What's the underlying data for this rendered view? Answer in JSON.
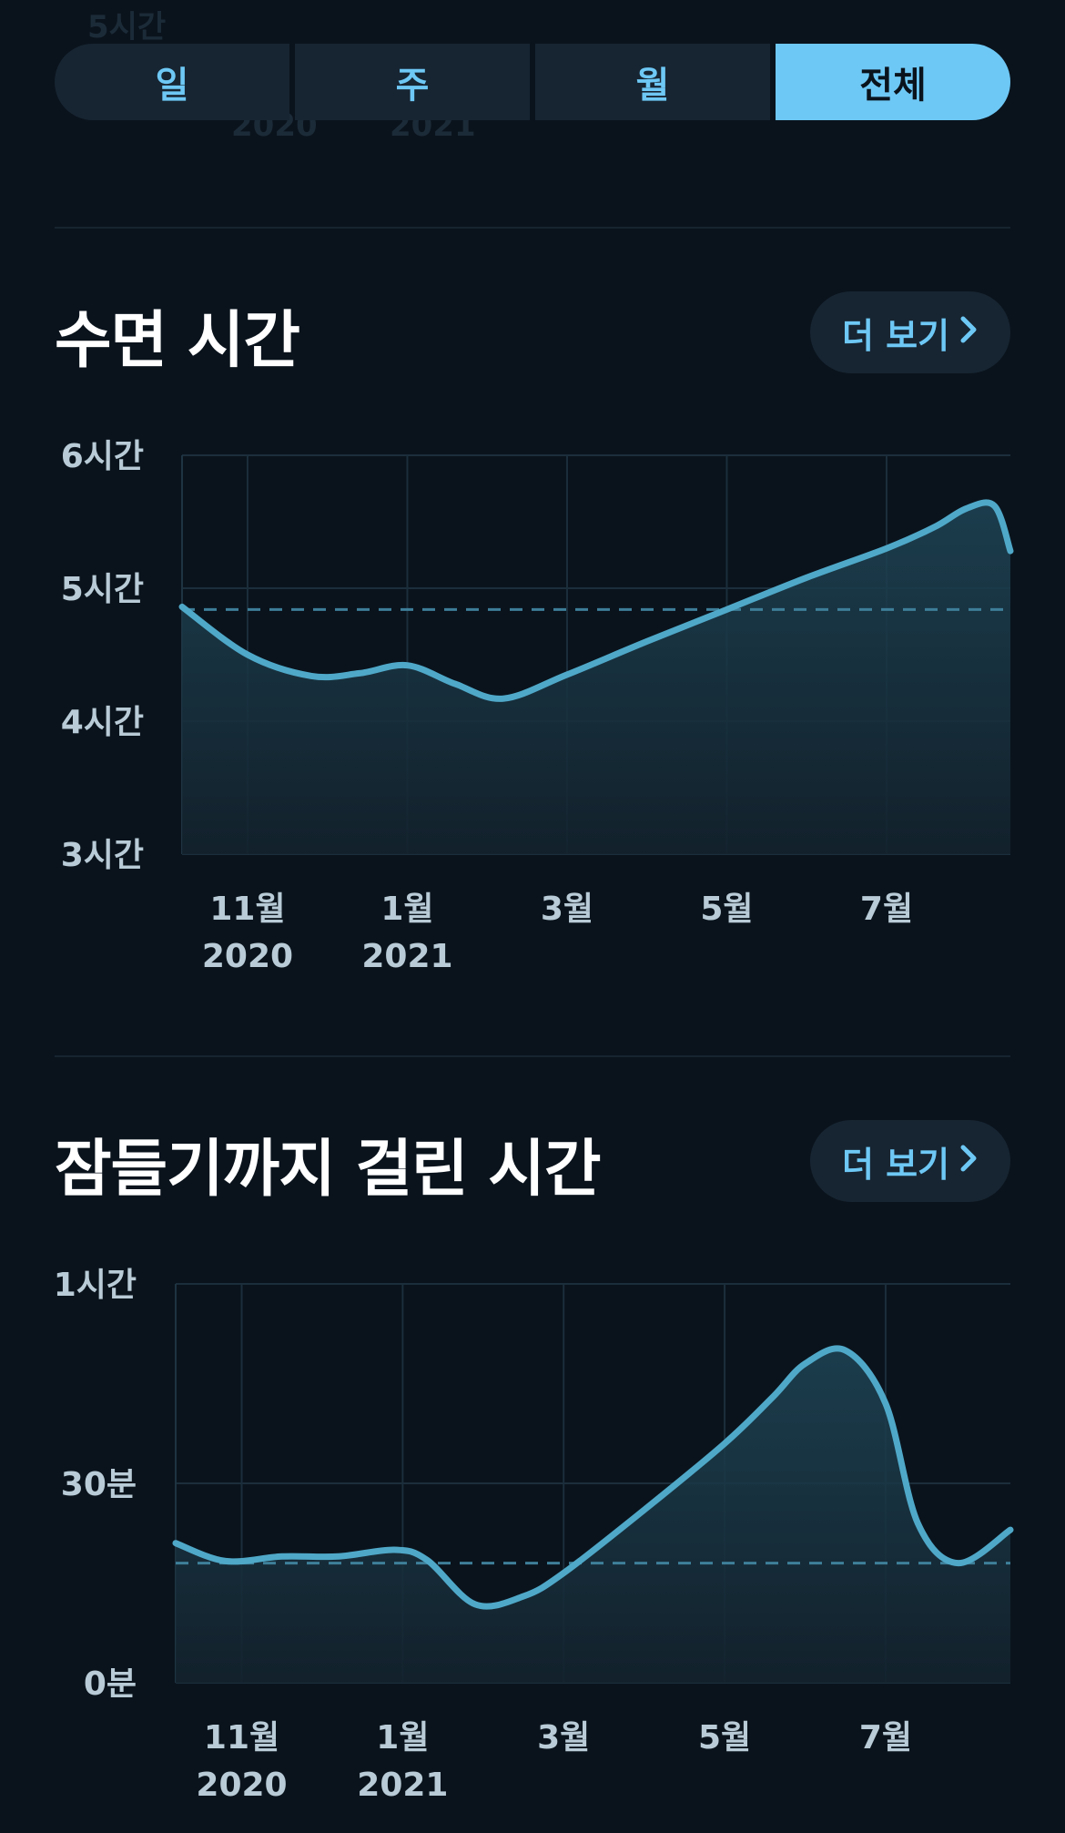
{
  "background_ghost": {
    "y_label": "5시간",
    "x_labels": [
      "2020",
      "2021"
    ]
  },
  "period_tabs": {
    "items": [
      "일",
      "주",
      "월",
      "전체"
    ],
    "selected": "전체"
  },
  "sections": [
    {
      "title": "수면 시간",
      "more_label": "더 보기"
    },
    {
      "title": "잠들기까지 걸린 시간",
      "more_label": "더 보기"
    }
  ],
  "colors": {
    "accent": "#6ec8f5",
    "line": "#4fa8c8",
    "background": "#0a131c",
    "button_bg": "#172532",
    "axis_label": "#b8cbd6"
  },
  "chart_data": [
    {
      "type": "area",
      "title": "수면 시간",
      "x_tick_positions": [
        1.0,
        3.0,
        5.0,
        7.0,
        9.0
      ],
      "x_tick_labels": [
        "11월",
        "1월",
        "3월",
        "5월",
        "7월"
      ],
      "x_year_labels": [
        {
          "at": 1.0,
          "label": "2020"
        },
        {
          "at": 3.0,
          "label": "2021"
        }
      ],
      "xlim": [
        0.18,
        10.55
      ],
      "y_ticks": [
        3,
        4,
        5,
        6
      ],
      "y_tick_labels": [
        "3시간",
        "4시간",
        "5시간",
        "6시간"
      ],
      "ylim": [
        3,
        6
      ],
      "average": 4.84,
      "series": [
        {
          "x": [
            0.18,
            1.0,
            1.8,
            2.4,
            3.0,
            3.6,
            4.2,
            5.0,
            6.0,
            7.0,
            8.0,
            9.0,
            9.6,
            10.0,
            10.35,
            10.55
          ],
          "y": [
            4.86,
            4.5,
            4.34,
            4.36,
            4.42,
            4.28,
            4.17,
            4.35,
            4.6,
            4.84,
            5.08,
            5.3,
            5.46,
            5.6,
            5.62,
            5.28
          ]
        }
      ],
      "grid": true,
      "legend": "none"
    },
    {
      "type": "area",
      "title": "잠들기까지 걸린 시간",
      "x_tick_positions": [
        1.0,
        3.0,
        5.0,
        7.0,
        9.0
      ],
      "x_tick_labels": [
        "11월",
        "1월",
        "3월",
        "5월",
        "7월"
      ],
      "x_year_labels": [
        {
          "at": 1.0,
          "label": "2020"
        },
        {
          "at": 3.0,
          "label": "2021"
        }
      ],
      "xlim": [
        0.18,
        10.55
      ],
      "y_ticks": [
        0,
        30,
        60
      ],
      "y_tick_labels": [
        "0분",
        "30분",
        "1시간"
      ],
      "ylim": [
        0,
        60
      ],
      "average": 18,
      "series": [
        {
          "x": [
            0.18,
            0.8,
            1.5,
            2.2,
            2.9,
            3.3,
            3.9,
            4.5,
            5.0,
            6.0,
            7.0,
            7.6,
            8.0,
            8.5,
            9.0,
            9.4,
            9.9,
            10.55
          ],
          "y": [
            21,
            18.3,
            19,
            19,
            20,
            18.5,
            11.8,
            13,
            16.5,
            26,
            36,
            43,
            48,
            50,
            42,
            24,
            18,
            23
          ]
        }
      ],
      "grid": true,
      "legend": "none"
    }
  ]
}
